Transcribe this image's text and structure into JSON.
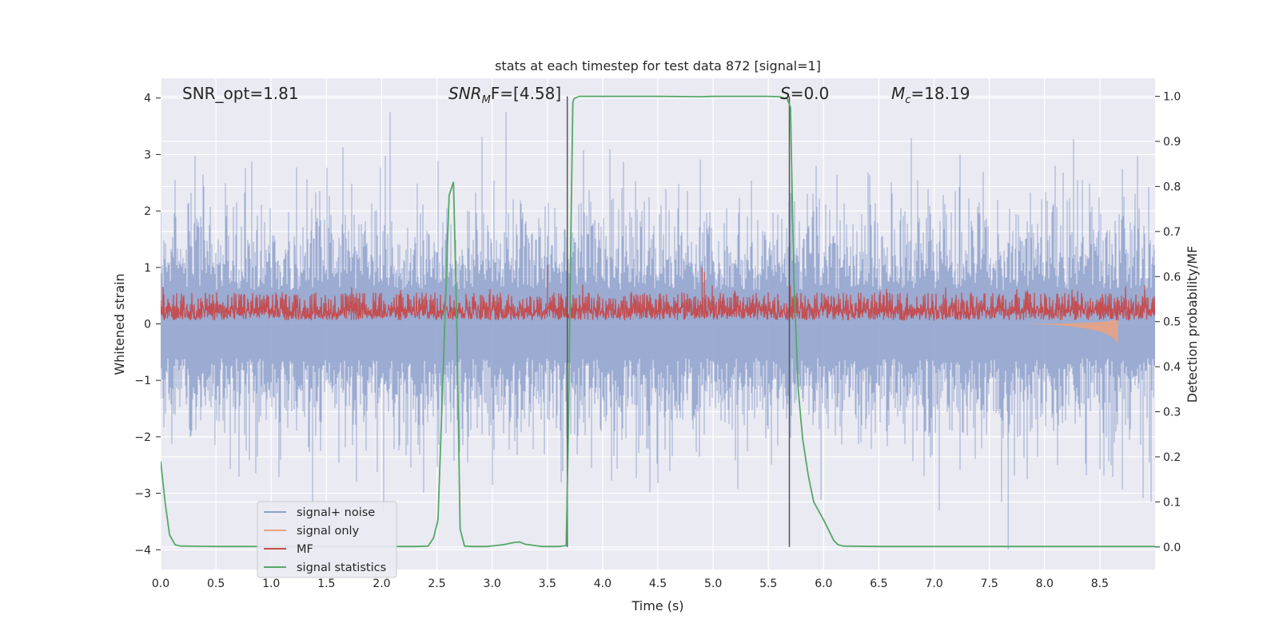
{
  "chart_data": {
    "type": "line",
    "title": "stats at each timestep for test data 872 [signal=1]",
    "xlabel": "Time (s)",
    "ylabel": "Whitened strain",
    "ylabel_right": "Detection probability/MF",
    "xlim": [
      0,
      9.0
    ],
    "ylim": [
      -4.35,
      4.35
    ],
    "ylim_right": [
      -0.05,
      1.04
    ],
    "x_ticks": [
      0.0,
      0.5,
      1.0,
      1.5,
      2.0,
      2.5,
      3.0,
      3.5,
      4.0,
      4.5,
      5.0,
      5.5,
      6.0,
      6.5,
      7.0,
      7.5,
      8.0,
      8.5
    ],
    "x_tick_labels": [
      "0.0",
      "0.5",
      "1.0",
      "1.5",
      "2.0",
      "2.5",
      "3.0",
      "3.5",
      "4.0",
      "4.5",
      "5.0",
      "5.5",
      "6.0",
      "6.5",
      "7.0",
      "7.5",
      "8.0",
      "8.5"
    ],
    "y_ticks": [
      4,
      3,
      2,
      1,
      0,
      -1,
      -2,
      -3,
      -4
    ],
    "y_tick_labels": [
      "4",
      "3",
      "2",
      "1",
      "0",
      "−1",
      "−2",
      "−3",
      "−4"
    ],
    "y_right_ticks": [
      1.0,
      0.9,
      0.8,
      0.7,
      0.6,
      0.5,
      0.4,
      0.3,
      0.2,
      0.1,
      0.0
    ],
    "y_right_tick_labels": [
      "1.0",
      "0.9",
      "0.8",
      "0.7",
      "0.6",
      "0.5",
      "0.4",
      "0.3",
      "0.2",
      "0.1",
      "0.0"
    ],
    "grid": true,
    "legend_position": "lower-left",
    "annotations": {
      "snr_opt": "SNR_opt=1.81",
      "snr_mf_main": "SNR",
      "snr_mf_sub": "M",
      "snr_mf_rest": "F=[4.58]",
      "s_main": "S",
      "s_rest": "=0.0",
      "mc_main": "M",
      "mc_sub": "c",
      "mc_rest": "=18.19"
    },
    "vlines": [
      3.68,
      5.69
    ],
    "series": [
      {
        "name": "signal+ noise",
        "color": "#8da0cb",
        "description": "whitened noise, amplitude envelope approx ±1.6 with spikes to ±3.7",
        "min_tail_at": 7.67,
        "min_tail_value": -4.0
      },
      {
        "name": "signal only",
        "color": "#e8a382",
        "description": "chirp at end of segment",
        "x": [
          7.9,
          8.0,
          8.1,
          8.2,
          8.3,
          8.4,
          8.5,
          8.55,
          8.6,
          8.64,
          8.66
        ],
        "envelope": [
          0.005,
          0.01,
          0.02,
          0.04,
          0.06,
          0.09,
          0.13,
          0.17,
          0.22,
          0.28,
          0.35
        ]
      },
      {
        "name": "MF",
        "color": "#c44e52",
        "description": "matched filter output, right axis, band approx 0.50 to 0.58",
        "spikes": [
          [
            3.5,
            0.626
          ],
          [
            4.9,
            0.62
          ],
          [
            4.92,
            0.61
          ],
          [
            5.7,
            0.58
          ]
        ]
      },
      {
        "name": "signal statistics",
        "color": "#55a868",
        "x": [
          0.0,
          0.04,
          0.08,
          0.13,
          0.18,
          0.5,
          1.0,
          1.5,
          2.0,
          2.3,
          2.42,
          2.47,
          2.51,
          2.56,
          2.61,
          2.65,
          2.68,
          2.71,
          2.75,
          2.82,
          2.95,
          3.1,
          3.2,
          3.25,
          3.3,
          3.45,
          3.6,
          3.67,
          3.69,
          3.71,
          3.73,
          3.74,
          3.79,
          4.0,
          4.5,
          4.9,
          5.0,
          5.5,
          5.6,
          5.67,
          5.7,
          5.73,
          5.77,
          5.81,
          5.86,
          5.91,
          5.96,
          6.0,
          6.04,
          6.09,
          6.13,
          6.18,
          6.5,
          7.0,
          8.0,
          9.0
        ],
        "values": [
          0.19,
          0.1,
          0.027,
          0.005,
          0.002,
          0.001,
          0.001,
          0.001,
          0.001,
          0.001,
          0.002,
          0.02,
          0.06,
          0.41,
          0.78,
          0.81,
          0.5,
          0.04,
          0.002,
          0.001,
          0.001,
          0.005,
          0.01,
          0.011,
          0.006,
          0.001,
          0.001,
          0.003,
          0.25,
          0.65,
          0.985,
          0.995,
          1.0,
          1.0,
          1.0,
          0.999,
          1.0,
          1.0,
          0.999,
          0.995,
          0.975,
          0.6,
          0.35,
          0.24,
          0.16,
          0.1,
          0.078,
          0.06,
          0.04,
          0.015,
          0.005,
          0.002,
          0.001,
          0.001,
          0.001,
          0.001
        ]
      }
    ]
  }
}
